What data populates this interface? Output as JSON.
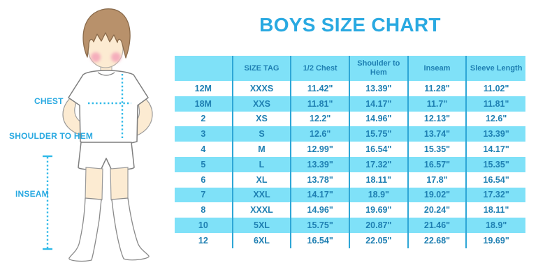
{
  "title": "BOYS SIZE CHART",
  "colors": {
    "accent_blue": "#29a9e1",
    "row_fill_cyan": "#7fe1f8",
    "cell_text_blue": "#1e7fb2",
    "divider_blue": "#2ea6d6",
    "measure_line_cyan": "#2fb9e8",
    "hair_brown": "#b8916b",
    "skin": "#fcebd2",
    "cheek_pink": "#f5aebc"
  },
  "figure": {
    "labels": [
      {
        "id": "chest",
        "text": "CHEST"
      },
      {
        "id": "shoulder-to-hem",
        "text": "SHOULDER TO HEM"
      },
      {
        "id": "inseam",
        "text": "INSEAM"
      }
    ]
  },
  "chart_data": {
    "type": "table",
    "title": "BOYS SIZE CHART",
    "columns": [
      "",
      "SIZE TAG",
      "1/2 Chest",
      "Shoulder to Hem",
      "Inseam",
      "Sleeve Length"
    ],
    "rows": [
      [
        "12M",
        "XXXS",
        "11.42\"",
        "13.39\"",
        "11.28\"",
        "11.02\""
      ],
      [
        "18M",
        "XXS",
        "11.81\"",
        "14.17\"",
        "11.7\"",
        "11.81\""
      ],
      [
        "2",
        "XS",
        "12.2\"",
        "14.96\"",
        "12.13\"",
        "12.6\""
      ],
      [
        "3",
        "S",
        "12.6\"",
        "15.75\"",
        "13.74\"",
        "13.39\""
      ],
      [
        "4",
        "M",
        "12.99\"",
        "16.54\"",
        "15.35\"",
        "14.17\""
      ],
      [
        "5",
        "L",
        "13.39\"",
        "17.32\"",
        "16.57\"",
        "15.35\""
      ],
      [
        "6",
        "XL",
        "13.78\"",
        "18.11\"",
        "17.8\"",
        "16.54\""
      ],
      [
        "7",
        "XXL",
        "14.17\"",
        "18.9\"",
        "19.02\"",
        "17.32\""
      ],
      [
        "8",
        "XXXL",
        "14.96\"",
        "19.69\"",
        "20.24\"",
        "18.11\""
      ],
      [
        "10",
        "5XL",
        "15.75\"",
        "20.87\"",
        "21.46\"",
        "18.9\""
      ],
      [
        "12",
        "6XL",
        "16.54\"",
        "22.05\"",
        "22.68\"",
        "19.69\""
      ]
    ],
    "layout": {
      "header_fill": "#7fe1f8",
      "alternating_row_fill": [
        "#ffffff",
        "#7fe1f8"
      ],
      "unit": "inches"
    }
  }
}
